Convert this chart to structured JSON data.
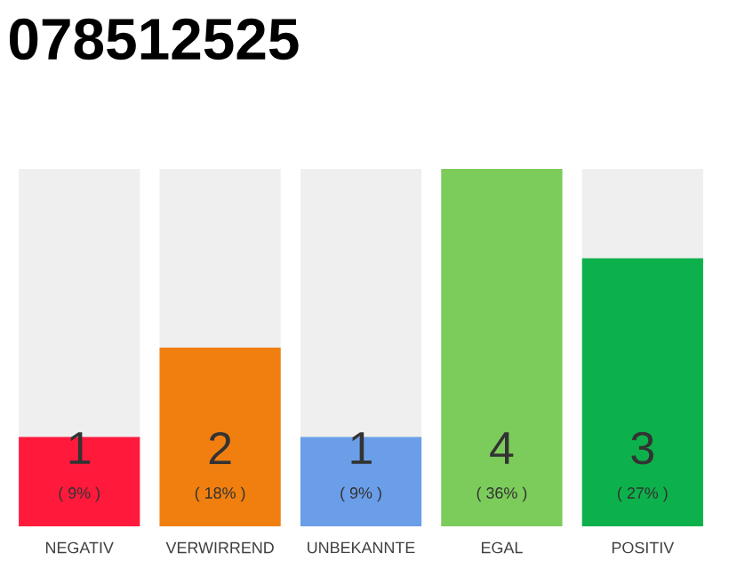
{
  "chart_data": {
    "type": "bar",
    "title": "078512525",
    "categories": [
      "NEGATIV",
      "VERWIRREND",
      "UNBEKANNTE",
      "EGAL",
      "POSITIV"
    ],
    "values": [
      9,
      18,
      9,
      36,
      27
    ],
    "colors": [
      "#ff1a3c",
      "#f07f0f",
      "#6b9ee8",
      "#7ccc5c",
      "#0db14b"
    ],
    "value_labels": [
      "( 9% )",
      "( 18% )",
      "( 9% )",
      "( 36% )",
      "( 27% )"
    ],
    "annotations": [
      "1",
      "2",
      "1",
      "4",
      "3"
    ]
  }
}
